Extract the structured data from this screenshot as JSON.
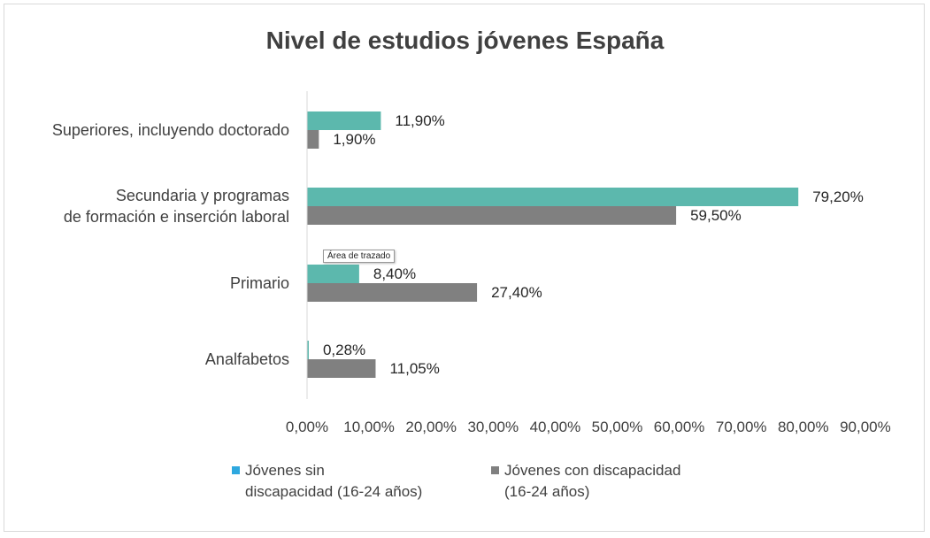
{
  "chart_data": {
    "type": "bar",
    "orientation": "horizontal",
    "title": "Nivel de estudios jóvenes España",
    "categories": [
      "Superiores, incluyendo doctorado",
      "Secundaria y programas de formación e inserción laboral",
      "Primario",
      "Analfabetos"
    ],
    "category_lines": [
      [
        "Superiores, incluyendo doctorado"
      ],
      [
        "Secundaria y programas",
        "de formación e inserción laboral"
      ],
      [
        "Primario"
      ],
      [
        "Analfabetos"
      ]
    ],
    "series": [
      {
        "name": "Jóvenes sin discapacidad (16-24 años)",
        "legend_lines": [
          "Jóvenes sin",
          "discapacidad (16-24 años)"
        ],
        "bar_color": "#5cb8ad",
        "legend_color": "#2ea8df",
        "values": [
          11.9,
          79.2,
          8.4,
          0.28
        ],
        "labels": [
          "11,90%",
          "79,20%",
          "8,40%",
          "0,28%"
        ]
      },
      {
        "name": "Jóvenes con discapacidad (16-24 años)",
        "legend_lines": [
          "Jóvenes con discapacidad",
          "(16-24 años)"
        ],
        "bar_color": "#808080",
        "legend_color": "#808080",
        "values": [
          1.9,
          59.5,
          27.4,
          11.05
        ],
        "labels": [
          "1,90%",
          "59,50%",
          "27,40%",
          "11,05%"
        ]
      }
    ],
    "xlim": [
      0,
      90
    ],
    "x_ticks": [
      "0,00%",
      "10,00%",
      "20,00%",
      "30,00%",
      "40,00%",
      "50,00%",
      "60,00%",
      "70,00%",
      "80,00%",
      "90,00%"
    ],
    "grid": false,
    "legend_position": "bottom",
    "tooltip": "Área de trazado"
  }
}
